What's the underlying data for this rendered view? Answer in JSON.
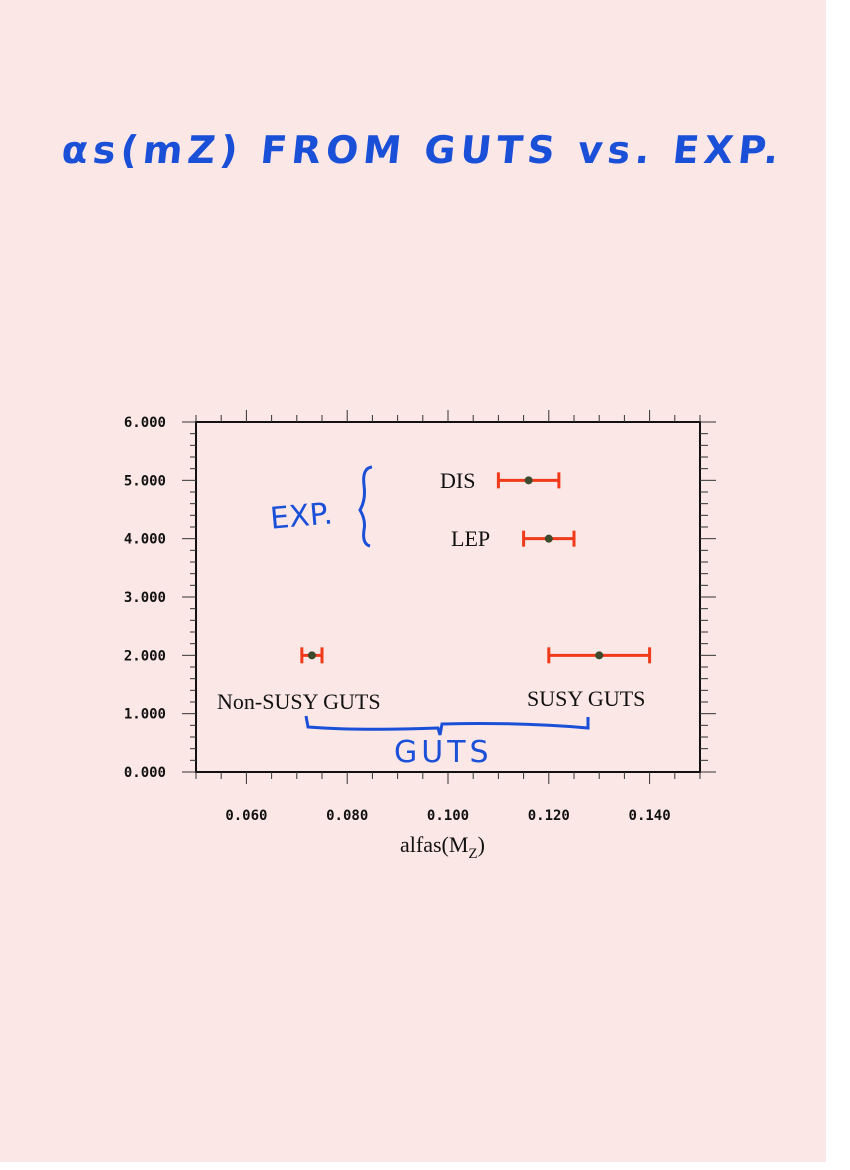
{
  "title": "αs(mZ) FROM GUTS vs. EXP.",
  "chart_data": {
    "type": "scatter",
    "title": "αs(mZ) FROM GUTS vs. EXP.",
    "xlabel": "alfas(M",
    "xlabel_sub": "Z",
    "xlabel_close": ")",
    "ylabel": "",
    "xlim": [
      0.05,
      0.15
    ],
    "ylim": [
      0,
      6
    ],
    "xticks": [
      "0.060",
      "0.080",
      "0.100",
      "0.120",
      "0.140"
    ],
    "xtick_values": [
      0.06,
      0.08,
      0.1,
      0.12,
      0.14
    ],
    "yticks": [
      "0.000",
      "1.000",
      "2.000",
      "3.000",
      "4.000",
      "5.000",
      "6.000"
    ],
    "ytick_values": [
      0,
      1,
      2,
      3,
      4,
      5,
      6
    ],
    "grid": false,
    "points": [
      {
        "label": "DIS",
        "x": 0.116,
        "xerr_low": 0.11,
        "xerr_high": 0.122,
        "y": 5
      },
      {
        "label": "LEP",
        "x": 0.12,
        "xerr_low": 0.115,
        "xerr_high": 0.125,
        "y": 4
      },
      {
        "label": "Non-SUSY GUTS",
        "x": 0.073,
        "xerr_low": 0.071,
        "xerr_high": 0.075,
        "y": 2
      },
      {
        "label": "SUSY GUTS",
        "x": 0.13,
        "xerr_low": 0.12,
        "xerr_high": 0.14,
        "y": 2
      }
    ],
    "annotations": [
      "EXP.",
      "GUTS"
    ],
    "colors": {
      "errorbar": "#f03a1a",
      "point": "#3c4a2e",
      "handwriting": "#1a4fd8"
    }
  }
}
